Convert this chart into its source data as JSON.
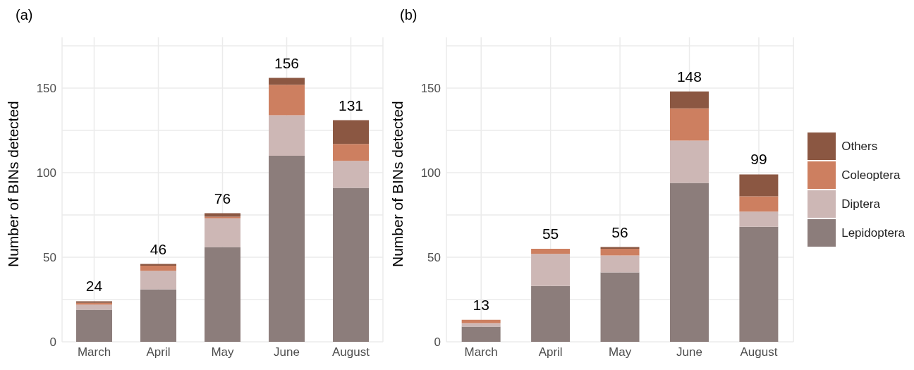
{
  "chart_data": [
    {
      "type": "bar",
      "title": "(a)",
      "ylabel": "Number of BINs detected",
      "categories": [
        "March",
        "April",
        "May",
        "June",
        "August"
      ],
      "stacked": true,
      "ylim": [
        0,
        180
      ],
      "yticks": [
        0,
        {
          "value": 25,
          "label": null
        },
        50,
        {
          "value": 75,
          "label": null
        },
        100,
        {
          "value": 125,
          "label": null
        },
        150,
        {
          "value": 175,
          "label": null
        }
      ],
      "grid": true,
      "legend": false,
      "totals": [
        "24",
        "46",
        "76",
        "156",
        "131"
      ],
      "series": [
        {
          "color": "#8c7d7b",
          "values": [
            19,
            31,
            56,
            110,
            91
          ]
        },
        {
          "color": "#cdb7b5",
          "values": [
            3,
            11,
            17,
            24,
            16
          ]
        },
        {
          "color": "#cd7f60",
          "values": [
            1,
            3,
            1,
            18,
            10
          ]
        },
        {
          "color": "#8b5742",
          "values": [
            1,
            1,
            2,
            4,
            14
          ]
        }
      ]
    },
    {
      "type": "bar",
      "title": "(b)",
      "ylabel": "Number of BINs detected",
      "categories": [
        "March",
        "April",
        "May",
        "June",
        "August"
      ],
      "stacked": true,
      "ylim": [
        0,
        180
      ],
      "yticks": [
        0,
        {
          "value": 25,
          "label": null
        },
        50,
        {
          "value": 75,
          "label": null
        },
        100,
        {
          "value": 125,
          "label": null
        },
        150,
        {
          "value": 175,
          "label": null
        }
      ],
      "grid": true,
      "legend": "right",
      "totals": [
        "13",
        "55",
        "56",
        "148",
        "99"
      ],
      "series": [
        {
          "name": "Lepidoptera",
          "color": "#8c7d7b",
          "values": [
            9,
            33,
            41,
            94,
            68
          ]
        },
        {
          "name": "Diptera",
          "color": "#cdb7b5",
          "values": [
            2,
            19,
            10,
            25,
            9
          ]
        },
        {
          "name": "Coleoptera",
          "color": "#cd7f60",
          "values": [
            2,
            3,
            4,
            19,
            9
          ]
        },
        {
          "name": "Others",
          "color": "#8b5742",
          "values": [
            0,
            0,
            1,
            10,
            13
          ]
        }
      ]
    }
  ]
}
